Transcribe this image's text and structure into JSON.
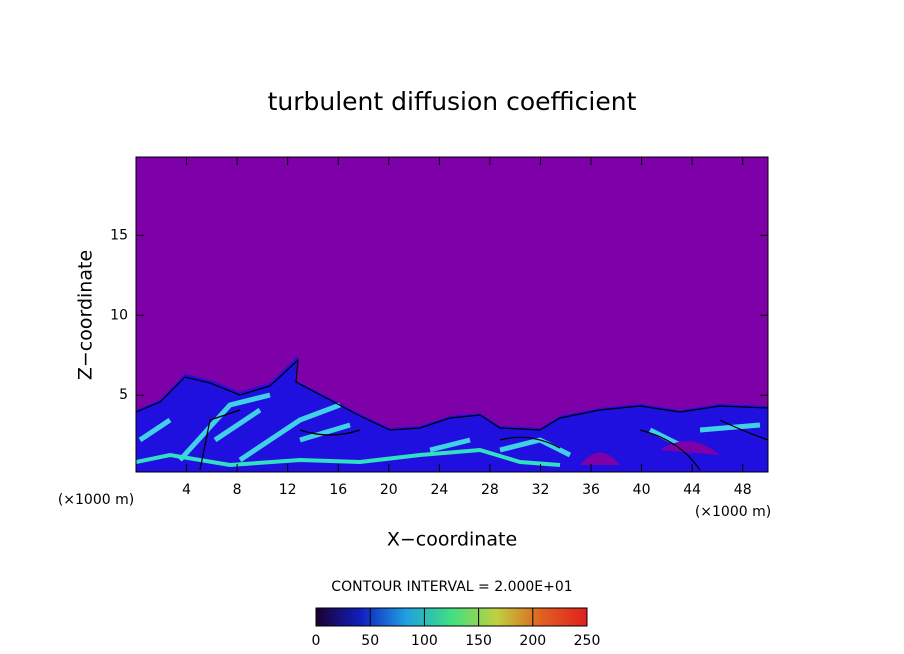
{
  "chart_data": {
    "type": "contour",
    "title": "turbulent diffusion coefficient",
    "xlabel": "X−coordinate",
    "ylabel": "Z−coordinate",
    "x_unit_labels": [
      "(×1000 m)",
      "(×1000 m)"
    ],
    "xlim": [
      0,
      50
    ],
    "xticks": [
      4,
      8,
      12,
      16,
      20,
      24,
      28,
      32,
      36,
      40,
      44,
      48
    ],
    "ylim": [
      0.2,
      19.9
    ],
    "yticks": [
      5,
      10,
      15
    ],
    "contour_interval_label": "CONTOUR INTERVAL = 2.000E+01",
    "colorbar": {
      "lim": [
        0,
        250
      ],
      "ticks": [
        0,
        50,
        100,
        150,
        200,
        250
      ],
      "colors": [
        "#1a0030",
        "#1020c0",
        "#20a0e0",
        "#40e080",
        "#c0d040",
        "#e06020",
        "#e02020"
      ]
    }
  }
}
